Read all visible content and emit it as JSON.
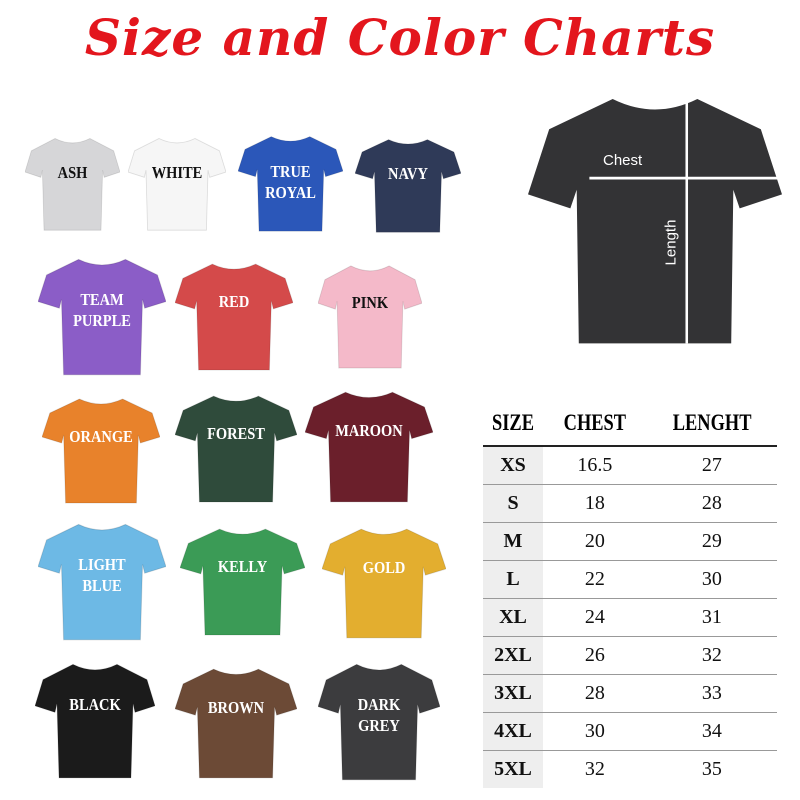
{
  "title": "Size and Color Charts",
  "colors": [
    {
      "label": "ASH",
      "color": "#d6d6d8",
      "text": "#111"
    },
    {
      "label": "WHITE",
      "color": "#f6f6f6",
      "text": "#111"
    },
    {
      "label": "TRUE ROYAL",
      "color": "#2b57b9",
      "text": "#fff"
    },
    {
      "label": "NAVY",
      "color": "#2f3a58",
      "text": "#fff"
    },
    {
      "label": "TEAM PURPLE",
      "color": "#8b5dc7",
      "text": "#fff"
    },
    {
      "label": "RED",
      "color": "#d44a4a",
      "text": "#fff"
    },
    {
      "label": "PINK",
      "color": "#f4b9c9",
      "text": "#111"
    },
    {
      "label": "ORANGE",
      "color": "#e8822b",
      "text": "#fff"
    },
    {
      "label": "FOREST",
      "color": "#2f4b3b",
      "text": "#fff"
    },
    {
      "label": "MAROON",
      "color": "#6b1f2b",
      "text": "#fff"
    },
    {
      "label": "LIGHT BLUE",
      "color": "#6db9e5",
      "text": "#fff"
    },
    {
      "label": "KELLY",
      "color": "#3b9b56",
      "text": "#fff"
    },
    {
      "label": "GOLD",
      "color": "#e3ae2f",
      "text": "#fff"
    },
    {
      "label": "BLACK",
      "color": "#1b1b1b",
      "text": "#fff"
    },
    {
      "label": "BROWN",
      "color": "#6c4a36",
      "text": "#fff"
    },
    {
      "label": "DARK GREY",
      "color": "#3c3c3e",
      "text": "#fff"
    }
  ],
  "measure": {
    "chest_label": "Chest",
    "length_label": "Length",
    "shirt_color": "#333335"
  },
  "table": {
    "headers": [
      "SIZE",
      "CHEST",
      "LENGHT"
    ],
    "rows": [
      [
        "XS",
        "16.5",
        "27"
      ],
      [
        "S",
        "18",
        "28"
      ],
      [
        "M",
        "20",
        "29"
      ],
      [
        "L",
        "22",
        "30"
      ],
      [
        "XL",
        "24",
        "31"
      ],
      [
        "2XL",
        "26",
        "32"
      ],
      [
        "3XL",
        "28",
        "33"
      ],
      [
        "4XL",
        "30",
        "34"
      ],
      [
        "5XL",
        "32",
        "35"
      ]
    ]
  }
}
